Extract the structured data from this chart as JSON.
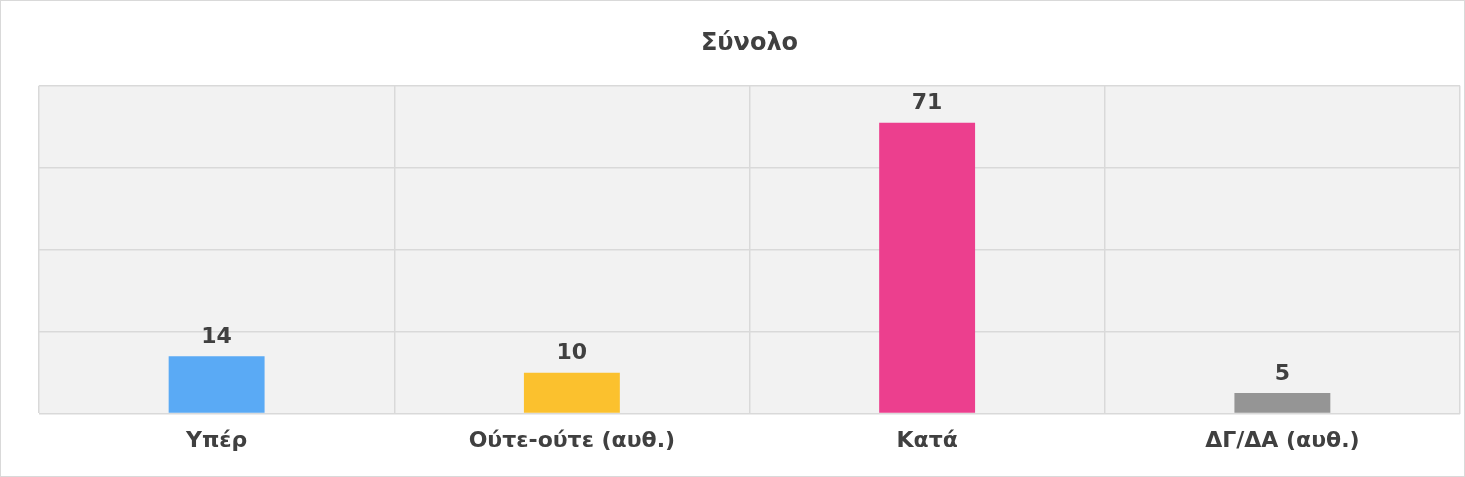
{
  "chart_data": {
    "type": "bar",
    "title": "Σύνολο",
    "categories": [
      "Υπέρ",
      "Ούτε-ούτε (αυθ.)",
      "Κατά",
      "ΔΓ/ΔΑ (αυθ.)"
    ],
    "values": [
      14,
      10,
      71,
      5
    ],
    "colors": [
      "#5aaaf5",
      "#fbc12e",
      "#ec3f8e",
      "#959595"
    ],
    "ylim": [
      0,
      80
    ],
    "yticks": [
      0,
      20,
      40,
      60,
      80
    ],
    "grid": true,
    "tick_labels": "x",
    "data_labels": true,
    "legend": false
  }
}
